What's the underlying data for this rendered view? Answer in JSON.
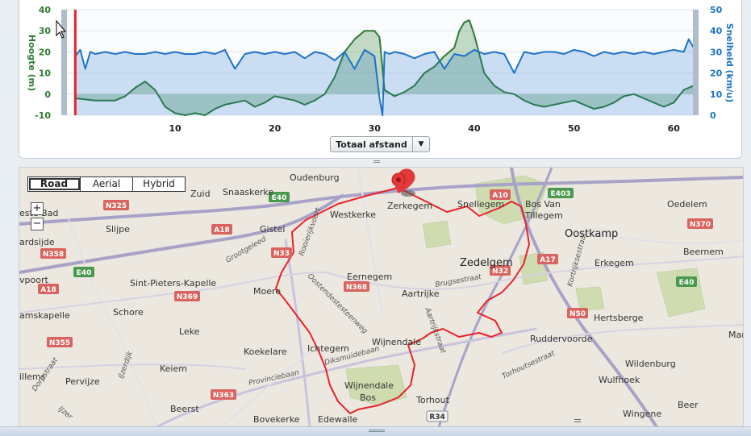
{
  "chart_data": {
    "type": "line",
    "xlabel": "Totaal afstand",
    "xlim": [
      -1,
      62
    ],
    "x_ticks": [
      10,
      20,
      30,
      40,
      50,
      60
    ],
    "left_axis": {
      "label": "Hoogte (m)",
      "ylim": [
        -10,
        40
      ],
      "ticks": [
        -10,
        0,
        10,
        20,
        30,
        40
      ],
      "color": "#2e7d32"
    },
    "right_axis": {
      "label": "Snelheid (km/u)",
      "ylim": [
        0,
        50
      ],
      "ticks": [
        0,
        10,
        20,
        30,
        40,
        50
      ],
      "color": "#1e73c8"
    },
    "marker_x": 0,
    "series": [
      {
        "name": "Hoogte (m)",
        "axis": "left",
        "color": "#2e7d32",
        "x": [
          0,
          2,
          4,
          5,
          6,
          7,
          8,
          8.5,
          9,
          10,
          11,
          12,
          13,
          14,
          15,
          16,
          17,
          18,
          19,
          20,
          21,
          22,
          23,
          24,
          25,
          26,
          27,
          28,
          29,
          30,
          30.5,
          31,
          32,
          33,
          34,
          35,
          36,
          37,
          38,
          38.5,
          39,
          39.5,
          40,
          41,
          42,
          43,
          44,
          45,
          46,
          47,
          48,
          49,
          50,
          51,
          52,
          53,
          54,
          55,
          56,
          57,
          58,
          59,
          60,
          61,
          62
        ],
        "values": [
          -2,
          -3,
          -3,
          -1,
          3,
          6,
          2,
          -2,
          -6,
          -9,
          -10,
          -9,
          -10,
          -7,
          -5,
          -4,
          -3,
          -6,
          -4,
          -1,
          -2,
          -3,
          -5,
          -3,
          0,
          8,
          20,
          26,
          30,
          30,
          27,
          2,
          -1,
          1,
          4,
          10,
          13,
          18,
          22,
          30,
          34,
          35,
          28,
          10,
          4,
          1,
          0,
          -3,
          -5,
          -6,
          -5,
          -4,
          -3,
          -5,
          -7,
          -6,
          -4,
          -1,
          0,
          -2,
          -4,
          -6,
          -4,
          2,
          4
        ]
      },
      {
        "name": "Snelheid (km/u)",
        "axis": "right",
        "color": "#1e73c8",
        "x": [
          0,
          0.5,
          1,
          1.5,
          2,
          3,
          4,
          5,
          6,
          7,
          8,
          9,
          10,
          11,
          12,
          13,
          14,
          15,
          16,
          17,
          18,
          19,
          20,
          21,
          22,
          23,
          24,
          25,
          26,
          27,
          28,
          29,
          30,
          30.5,
          30.8,
          31,
          31.5,
          32,
          33,
          34,
          35,
          36,
          37,
          38,
          39,
          40,
          41,
          42,
          43,
          44,
          45,
          46,
          47,
          48,
          49,
          50,
          51,
          52,
          53,
          54,
          55,
          56,
          57,
          58,
          59,
          60,
          61,
          61.5,
          62
        ],
        "values": [
          28,
          31,
          22,
          30,
          29,
          30,
          29,
          30,
          29,
          29,
          30,
          29,
          30,
          29,
          29,
          30,
          29,
          31,
          22,
          29,
          30,
          29,
          30,
          29,
          30,
          27,
          30,
          29,
          26,
          30,
          22,
          31,
          28,
          8,
          0,
          30,
          29,
          30,
          29,
          27,
          29,
          30,
          22,
          29,
          28,
          31,
          29,
          30,
          29,
          20,
          30,
          29,
          30,
          30,
          29,
          31,
          30,
          28,
          30,
          29,
          30,
          29,
          30,
          29,
          30,
          31,
          30,
          36,
          32
        ]
      }
    ]
  },
  "chart_ui": {
    "axis_selector_label": "Totaal afstand",
    "axis_selector_arrow": "▼"
  },
  "map": {
    "map_types": [
      {
        "label": "Road",
        "active": true
      },
      {
        "label": "Aerial",
        "active": false
      },
      {
        "label": "Hybrid",
        "active": false
      }
    ],
    "zoom_in": "+",
    "zoom_out": "−",
    "places": [
      {
        "name": "Oudenburg"
      },
      {
        "name": "Snaaskerke"
      },
      {
        "name": "Westkerke"
      },
      {
        "name": "Zerkegem"
      },
      {
        "name": "Snellegem"
      },
      {
        "name": "Bos Van"
      },
      {
        "name": "Tillegem"
      },
      {
        "name": "Oostkamp"
      },
      {
        "name": "Oedelem"
      },
      {
        "name": "Beernem"
      },
      {
        "name": "Gistel"
      },
      {
        "name": "Slijpe"
      },
      {
        "name": "Zedelgem"
      },
      {
        "name": "Erkegem"
      },
      {
        "name": "Eernegem"
      },
      {
        "name": "Moere"
      },
      {
        "name": "Sint-Pieters-Kapelle"
      },
      {
        "name": "Aartrijke"
      },
      {
        "name": "Schore"
      },
      {
        "name": "Hertsberge"
      },
      {
        "name": "Leke"
      },
      {
        "name": "Ruddervoorde"
      },
      {
        "name": "Koekelare"
      },
      {
        "name": "Ichtegem"
      },
      {
        "name": "Wijnendale"
      },
      {
        "name": "Wildenburg"
      },
      {
        "name": "Keiem"
      },
      {
        "name": "Wulfhoek"
      },
      {
        "name": "Pervijze"
      },
      {
        "name": "Wijnendale"
      },
      {
        "name": "Bos"
      },
      {
        "name": "Torhout"
      },
      {
        "name": "Beerst"
      },
      {
        "name": "Beer"
      },
      {
        "name": "Wingene"
      },
      {
        "name": "Bovekerke"
      },
      {
        "name": "Edewalle"
      },
      {
        "name": "este-Bad"
      },
      {
        "name": "ardsijde"
      },
      {
        "name": "vpoort"
      },
      {
        "name": "amskapelle"
      },
      {
        "name": "illems"
      },
      {
        "name": "Mar"
      },
      {
        "name": "Zuid"
      }
    ],
    "streets": [
      {
        "name": "Rooierijkvoort"
      },
      {
        "name": "Grootgeleed"
      },
      {
        "name": "Oostendestesteenweg"
      },
      {
        "name": "Brugsestraat"
      },
      {
        "name": "Kortrijksestraat"
      },
      {
        "name": "Aartrijkstraat"
      },
      {
        "name": "Diksmuidebaan"
      },
      {
        "name": "Provinciebaan"
      },
      {
        "name": "Torhoutsestraat"
      },
      {
        "name": "IJzerdijk"
      },
      {
        "name": "Dorpstraat"
      },
      {
        "name": "IJzer"
      }
    ],
    "road_badges": [
      {
        "label": "E40"
      },
      {
        "label": "N325"
      },
      {
        "label": "A18"
      },
      {
        "label": "N33"
      },
      {
        "label": "N358"
      },
      {
        "label": "E40"
      },
      {
        "label": "A18"
      },
      {
        "label": "N369"
      },
      {
        "label": "N368"
      },
      {
        "label": "N355"
      },
      {
        "label": "N363"
      },
      {
        "label": "A10"
      },
      {
        "label": "E403"
      },
      {
        "label": "N370"
      },
      {
        "label": "A17"
      },
      {
        "label": "N32"
      },
      {
        "label": "N50"
      },
      {
        "label": "E40"
      },
      {
        "label": "R34"
      }
    ]
  }
}
